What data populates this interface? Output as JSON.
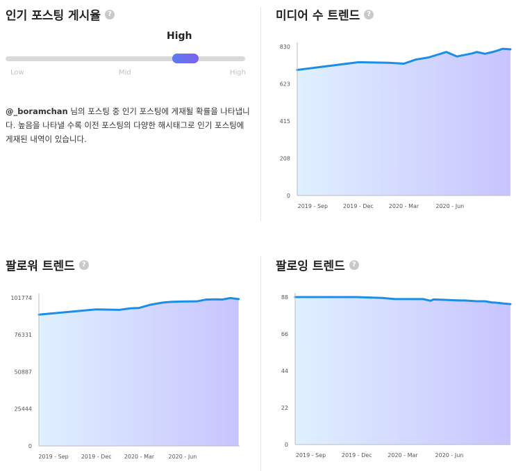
{
  "popular_posting": {
    "title": "인기 포스팅 게시율",
    "help_icon": "?",
    "level": {
      "value_label": "High",
      "fraction": 0.75
    },
    "scale_labels": [
      "Low",
      "Mid",
      "High"
    ],
    "username": "@_boramchan",
    "description": " 님의 포스팅 중 인기 포스팅에 게재될 확률을 나타냅니다. 높음을 나타낼 수록 이전 포스팅의 다양한 해시태그로 인기 포스팅에 게재된 내역이 있습니다."
  },
  "colors": {
    "line": "#1a8ee8",
    "fill_left": "#dff0ff",
    "fill_right": "#c8c4ff",
    "accent": "#6a6cf0"
  },
  "chart_data": [
    {
      "id": "media",
      "type": "area",
      "title": "미디어 수 트렌드",
      "x": [
        "2019-08-01",
        "2019-12-01",
        "2020-02-01",
        "2020-03-01",
        "2020-03-25",
        "2020-04-20",
        "2020-05-25",
        "2020-06-15",
        "2020-07-15",
        "2020-07-25",
        "2020-08-10",
        "2020-08-25",
        "2020-09-01",
        "2020-09-15",
        "2020-09-30"
      ],
      "y": [
        700,
        743,
        740,
        735,
        758,
        770,
        800,
        775,
        792,
        800,
        790,
        800,
        805,
        818,
        815
      ],
      "ylim": [
        0,
        830
      ],
      "yticks": [
        0,
        208,
        415,
        623,
        830
      ],
      "xtick_labels": [
        "2019 - Sep",
        "2019 - Dec",
        "2020 - Mar",
        "2020 - Jun"
      ],
      "xticks": [
        "2019-09-01",
        "2019-12-01",
        "2020-03-01",
        "2020-06-01"
      ],
      "xlim": [
        "2019-08-01",
        "2020-09-30"
      ],
      "grid": false
    },
    {
      "id": "followers",
      "type": "area",
      "title": "팔로워 트렌드",
      "x": [
        "2019-08-01",
        "2019-12-01",
        "2020-01-20",
        "2020-02-10",
        "2020-03-01",
        "2020-03-25",
        "2020-04-20",
        "2020-05-10",
        "2020-06-01",
        "2020-07-01",
        "2020-07-20",
        "2020-08-10",
        "2020-08-25",
        "2020-09-10",
        "2020-09-28"
      ],
      "y": [
        90200,
        93800,
        93500,
        94500,
        94800,
        97000,
        98500,
        99000,
        99200,
        99300,
        100500,
        100700,
        100600,
        101600,
        100900
      ],
      "ylim": [
        0,
        101774
      ],
      "yticks": [
        0,
        25444,
        50887,
        76331,
        101774
      ],
      "xtick_labels": [
        "2019 - Sep",
        "2019 - Dec",
        "2020 - Mar",
        "2020 - Jun"
      ],
      "xticks": [
        "2019-09-01",
        "2019-12-01",
        "2020-03-01",
        "2020-06-01"
      ],
      "xlim": [
        "2019-08-01",
        "2020-09-30"
      ],
      "grid": false
    },
    {
      "id": "following",
      "type": "area",
      "title": "팔로잉 트렌드",
      "x": [
        "2019-08-01",
        "2019-11-30",
        "2020-01-20",
        "2020-02-15",
        "2020-04-10",
        "2020-04-25",
        "2020-05-01",
        "2020-06-20",
        "2020-07-01",
        "2020-07-25",
        "2020-08-10",
        "2020-08-25",
        "2020-09-01",
        "2020-09-15",
        "2020-09-30"
      ],
      "y": [
        88,
        88,
        87.5,
        86.8,
        86.8,
        85.8,
        86.6,
        86,
        86,
        85.5,
        85.5,
        84.8,
        84.7,
        84.2,
        83.8
      ],
      "ylim": [
        0,
        88
      ],
      "yticks": [
        0,
        22,
        44,
        66,
        88
      ],
      "xtick_labels": [
        "2019 - Sep",
        "2019 - Dec",
        "2020 - Mar",
        "2020 - Jun"
      ],
      "xticks": [
        "2019-09-01",
        "2019-12-01",
        "2020-03-01",
        "2020-06-01"
      ],
      "xlim": [
        "2019-08-01",
        "2020-09-30"
      ],
      "grid": false
    }
  ]
}
